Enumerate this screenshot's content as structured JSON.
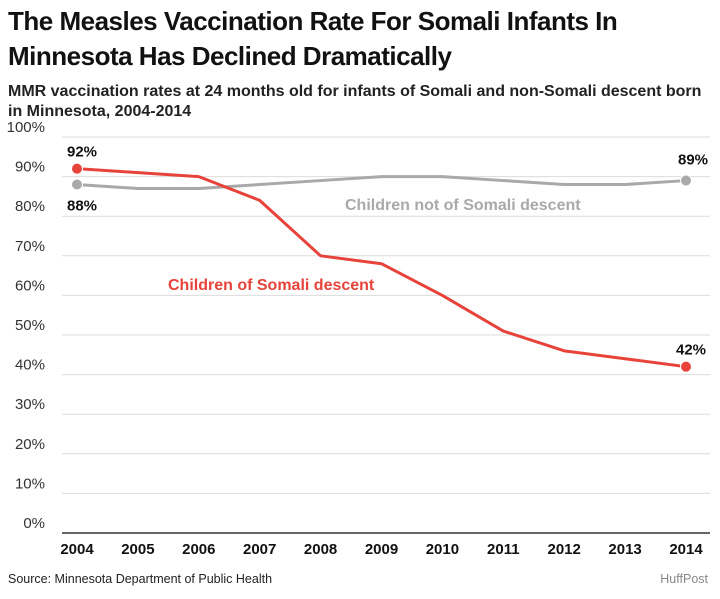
{
  "header": {
    "title": "The Measles Vaccination Rate For Somali Infants In Minnesota Has Declined Dramatically",
    "subtitle": "MMR vaccination rates at 24 months old for infants of Somali and non-Somali descent born in Minnesota, 2004-2014"
  },
  "footer": {
    "source": "Source:  Minnesota Department of Public Health",
    "brand": "HuffPost"
  },
  "chart_data": {
    "type": "line",
    "x": [
      "2004",
      "2005",
      "2006",
      "2007",
      "2008",
      "2009",
      "2010",
      "2011",
      "2012",
      "2013",
      "2014"
    ],
    "ylim": [
      0,
      100
    ],
    "yticks": [
      "0%",
      "10%",
      "20%",
      "30%",
      "40%",
      "50%",
      "60%",
      "70%",
      "80%",
      "90%",
      "100%"
    ],
    "grid": true,
    "series": [
      {
        "name": "Children of Somali descent",
        "color": "#e8433a",
        "values": [
          92,
          91,
          90,
          84,
          70,
          68,
          60,
          51,
          46,
          44,
          42
        ],
        "start_label": "92%",
        "end_label": "42%"
      },
      {
        "name": "Children not of Somali descent",
        "color": "#a9a9a9",
        "values": [
          88,
          87,
          87,
          88,
          89,
          90,
          90,
          89,
          88,
          88,
          89
        ],
        "start_label": "88%",
        "end_label": "89%"
      }
    ]
  }
}
